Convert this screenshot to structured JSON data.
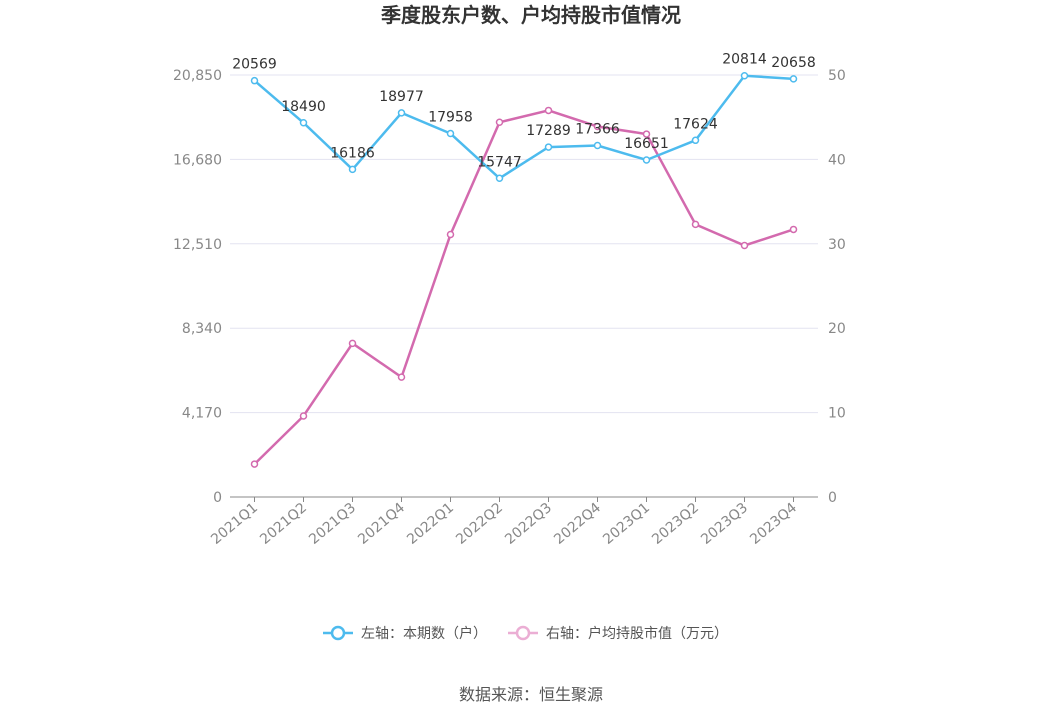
{
  "chart_data": {
    "type": "line",
    "title": "季度股东户数、户均持股市值情况",
    "categories": [
      "2021Q1",
      "2021Q2",
      "2021Q3",
      "2021Q4",
      "2022Q1",
      "2022Q2",
      "2022Q3",
      "2022Q4",
      "2023Q1",
      "2023Q2",
      "2023Q3",
      "2023Q4"
    ],
    "left_axis": {
      "ticks": [
        "0",
        "4,170",
        "8,340",
        "12,510",
        "16,680",
        "20,850"
      ],
      "min": 0,
      "max": 20850
    },
    "right_axis": {
      "ticks": [
        "0",
        "10",
        "20",
        "30",
        "40",
        "50"
      ],
      "min": 0,
      "max": 50
    },
    "series": [
      {
        "name": "左轴：本期数（户）",
        "axis": "left",
        "color": "#4dbbee",
        "values": [
          20569,
          18490,
          16186,
          18977,
          17958,
          15747,
          17289,
          17366,
          16651,
          17624,
          20814,
          20658
        ],
        "labels": [
          "20569",
          "18490",
          "16186",
          "18977",
          "17958",
          "15747",
          "17289",
          "17366",
          "16651",
          "17624",
          "20814",
          "20658"
        ]
      },
      {
        "name": "右轴：户均持股市值（万元）",
        "axis": "right",
        "color": "#d36aae",
        "values": [
          3.9,
          9.6,
          18.2,
          14.2,
          31.1,
          44.4,
          45.8,
          43.9,
          43.0,
          32.3,
          29.8,
          31.7
        ]
      }
    ],
    "legend_position": "bottom",
    "grid": true
  },
  "source_text": "数据来源：恒生聚源"
}
